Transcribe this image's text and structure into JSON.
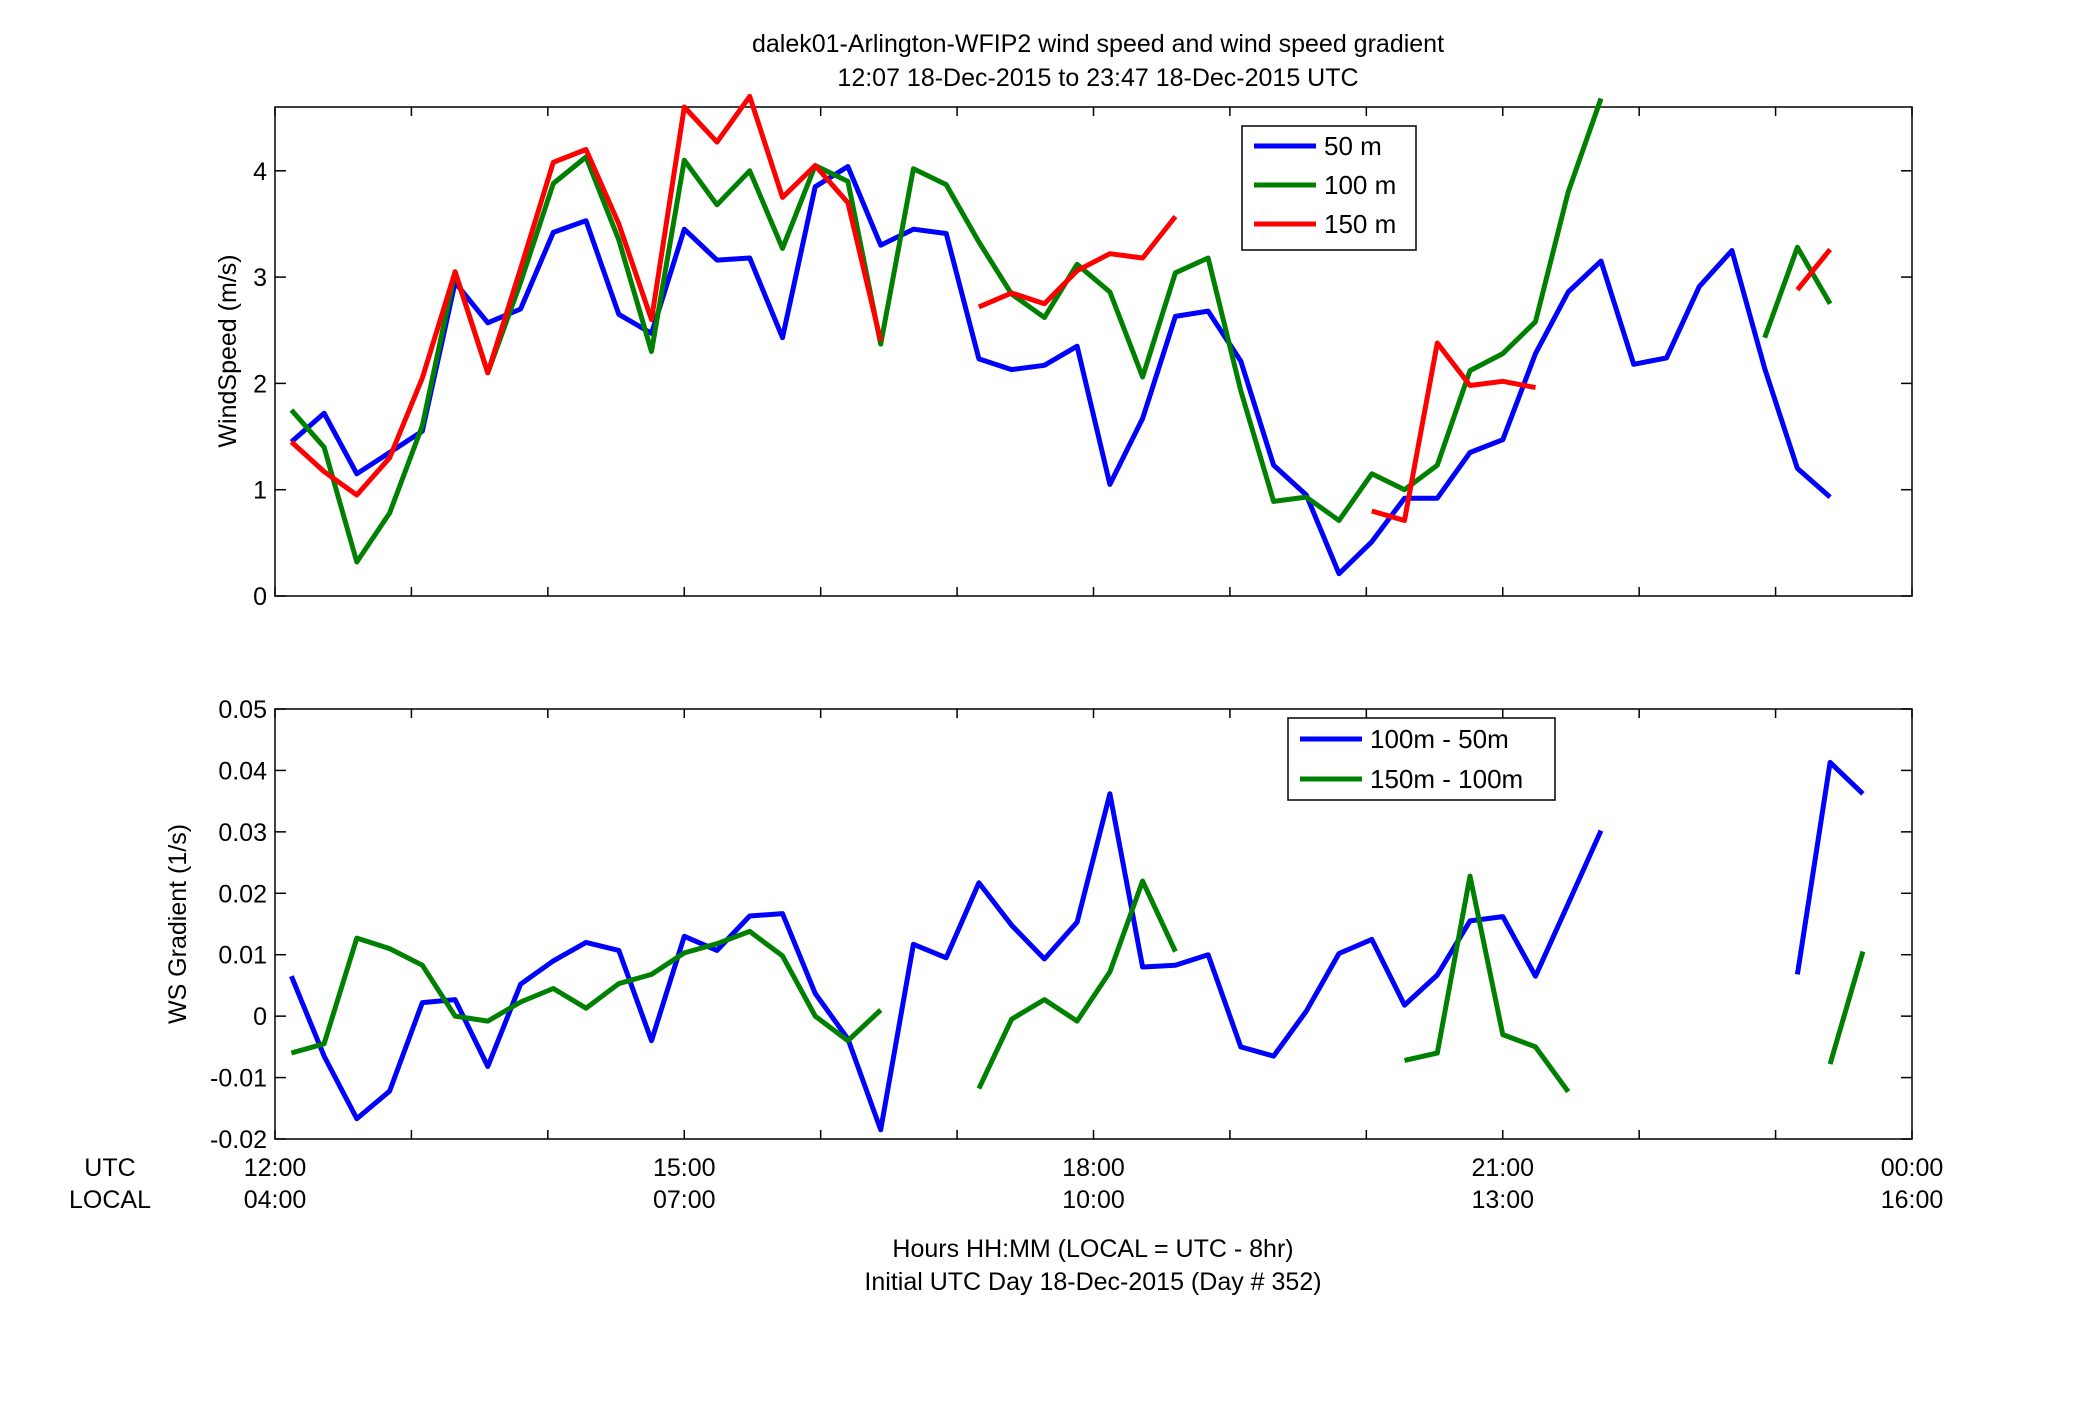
{
  "figure": {
    "title_line1": "dalek01-Arlington-WFIP2  wind speed and wind speed gradient",
    "title_line2": "12:07 18-Dec-2015 to 23:47 18-Dec-2015  UTC",
    "row_label_utc": "UTC",
    "row_label_local": "LOCAL",
    "xlabel_line1": "Hours HH:MM  (LOCAL = UTC - 8hr)",
    "xlabel_line2": "Initial UTC Day 18-Dec-2015 (Day # 352)",
    "x_ticks": [
      {
        "h": 12,
        "utc": "12:00",
        "local": "04:00"
      },
      {
        "h": 15,
        "utc": "15:00",
        "local": "07:00"
      },
      {
        "h": 18,
        "utc": "18:00",
        "local": "10:00"
      },
      {
        "h": 21,
        "utc": "21:00",
        "local": "13:00"
      },
      {
        "h": 24,
        "utc": "00:00",
        "local": "16:00"
      }
    ]
  },
  "chart_data": [
    {
      "type": "line",
      "ylabel": "WindSpeed (m/s)",
      "xlim": [
        12,
        24
      ],
      "ylim": [
        0,
        4.6
      ],
      "yticks": [
        0,
        1,
        2,
        3,
        4
      ],
      "ytick_labels": [
        "0",
        "1",
        "2",
        "3",
        "4"
      ],
      "legend_position": "top-right",
      "x": [
        12.12,
        12.36,
        12.6,
        12.84,
        13.08,
        13.32,
        13.56,
        13.8,
        14.04,
        14.28,
        14.52,
        14.76,
        15.0,
        15.24,
        15.48,
        15.72,
        15.96,
        16.2,
        16.44,
        16.68,
        16.92,
        17.16,
        17.4,
        17.64,
        17.88,
        18.12,
        18.36,
        18.6,
        18.84,
        19.08,
        19.32,
        19.56,
        19.8,
        20.04,
        20.28,
        20.52,
        20.76,
        21.0,
        21.24,
        21.48,
        21.72,
        21.96,
        22.2,
        22.44,
        22.68,
        22.92,
        23.16,
        23.4,
        23.64,
        23.88
      ],
      "series": [
        {
          "name": "50 m",
          "color": "#0000ff",
          "values": [
            1.45,
            1.72,
            1.15,
            1.35,
            1.55,
            2.95,
            2.57,
            2.7,
            3.42,
            3.53,
            2.65,
            2.47,
            3.45,
            3.16,
            3.18,
            2.43,
            3.85,
            4.04,
            3.3,
            3.45,
            3.41,
            2.23,
            2.13,
            2.17,
            2.35,
            1.05,
            1.67,
            2.63,
            2.68,
            2.21,
            1.23,
            0.95,
            0.21,
            0.51,
            0.92,
            0.92,
            1.35,
            1.47,
            2.28,
            2.86,
            3.15,
            2.18,
            2.24,
            2.91,
            3.25,
            2.14,
            1.2,
            0.93,
            null,
            null
          ]
        },
        {
          "name": "100 m",
          "color": "#008000",
          "values": [
            1.75,
            1.4,
            0.32,
            0.78,
            1.6,
            3.05,
            2.1,
            2.95,
            3.88,
            4.13,
            3.35,
            2.3,
            4.1,
            3.68,
            4.0,
            3.27,
            4.05,
            3.9,
            2.37,
            4.02,
            3.87,
            3.33,
            2.84,
            2.62,
            3.12,
            2.86,
            2.06,
            3.04,
            3.18,
            1.93,
            0.89,
            0.93,
            0.71,
            1.15,
            1.0,
            1.23,
            2.12,
            2.28,
            2.58,
            3.8,
            4.68,
            null,
            null,
            null,
            null,
            2.43,
            3.28,
            2.75,
            null,
            null
          ]
        },
        {
          "name": "150 m",
          "color": "#ff0000",
          "values": [
            1.45,
            1.17,
            0.95,
            1.3,
            2.05,
            3.05,
            2.1,
            3.08,
            4.08,
            4.2,
            3.5,
            2.6,
            4.6,
            4.27,
            4.7,
            3.75,
            4.05,
            3.7,
            2.4,
            null,
            null,
            2.72,
            2.85,
            2.75,
            3.06,
            3.22,
            3.18,
            3.57,
            null,
            null,
            null,
            null,
            null,
            0.8,
            0.71,
            2.38,
            1.98,
            2.02,
            1.96,
            null,
            null,
            null,
            null,
            null,
            null,
            null,
            2.88,
            3.26,
            null,
            null
          ]
        }
      ]
    },
    {
      "type": "line",
      "ylabel": "WS Gradient (1/s)",
      "xlim": [
        12,
        24
      ],
      "ylim": [
        -0.02,
        0.05
      ],
      "yticks": [
        -0.02,
        -0.01,
        0,
        0.01,
        0.02,
        0.03,
        0.04,
        0.05
      ],
      "ytick_labels": [
        "-0.02",
        "-0.01",
        "0",
        "0.01",
        "0.02",
        "0.03",
        "0.04",
        "0.05"
      ],
      "legend_position": "top-right",
      "x": [
        12.12,
        12.36,
        12.6,
        12.84,
        13.08,
        13.32,
        13.56,
        13.8,
        14.04,
        14.28,
        14.52,
        14.76,
        15.0,
        15.24,
        15.48,
        15.72,
        15.96,
        16.2,
        16.44,
        16.68,
        16.92,
        17.16,
        17.4,
        17.64,
        17.88,
        18.12,
        18.36,
        18.6,
        18.84,
        19.08,
        19.32,
        19.56,
        19.8,
        20.04,
        20.28,
        20.52,
        20.76,
        21.0,
        21.24,
        21.48,
        21.72,
        21.96,
        22.2,
        22.44,
        22.68,
        22.92,
        23.16,
        23.4,
        23.64,
        23.88
      ],
      "series": [
        {
          "name": "100m - 50m",
          "color": "#0000ff",
          "values": [
            0.0065,
            -0.0065,
            -0.0167,
            -0.0122,
            0.0022,
            0.0027,
            -0.0082,
            0.0052,
            0.009,
            0.012,
            0.0107,
            -0.004,
            0.013,
            0.0107,
            0.0163,
            0.0167,
            0.0037,
            -0.0037,
            -0.0185,
            0.0117,
            0.0095,
            0.0217,
            0.0148,
            0.0093,
            0.0153,
            0.0362,
            0.008,
            0.0083,
            0.01,
            -0.005,
            -0.0065,
            0.0008,
            0.0102,
            0.0125,
            0.0018,
            0.0067,
            0.0155,
            0.0162,
            0.0065,
            0.0183,
            0.0302,
            null,
            null,
            null,
            null,
            null,
            0.0068,
            0.0413,
            0.0362,
            null
          ]
        },
        {
          "name": "150m - 100m",
          "color": "#008000",
          "values": [
            -0.006,
            -0.0045,
            0.0127,
            0.011,
            0.0083,
            0.0,
            -0.0008,
            0.0023,
            0.0045,
            0.0013,
            0.0053,
            0.0068,
            0.0103,
            0.0118,
            0.0138,
            0.0098,
            0.0,
            -0.004,
            0.001,
            null,
            null,
            -0.0118,
            -0.0005,
            0.0027,
            -0.0008,
            0.0072,
            0.022,
            0.0105,
            null,
            null,
            null,
            null,
            null,
            null,
            -0.0072,
            -0.006,
            0.0228,
            -0.003,
            -0.005,
            -0.0123,
            null,
            null,
            null,
            null,
            null,
            null,
            null,
            -0.0078,
            0.0105,
            null
          ]
        }
      ]
    }
  ]
}
